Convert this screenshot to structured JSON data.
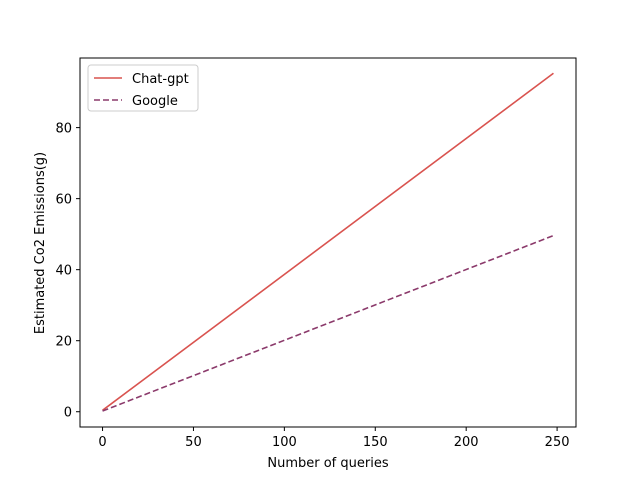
{
  "chart_data": {
    "type": "line",
    "xlabel": "Number of queries",
    "ylabel": "Estimated Co2 Emissions(g)",
    "xlim": [
      -12.4,
      260.4
    ],
    "ylim": [
      -4.3,
      99.6
    ],
    "xticks": [
      0,
      50,
      100,
      150,
      200,
      250
    ],
    "yticks": [
      0,
      20,
      40,
      60,
      80
    ],
    "x": [
      0,
      248
    ],
    "series": [
      {
        "name": "Chat-gpt",
        "values": [
          0.4,
          95.3
        ],
        "color": "#d9534f",
        "dash": "solid"
      },
      {
        "name": "Google",
        "values": [
          0.2,
          49.6
        ],
        "color": "#8b3a6b",
        "dash": "dashed"
      }
    ],
    "legend": {
      "position": "top-left"
    },
    "grid": false
  }
}
